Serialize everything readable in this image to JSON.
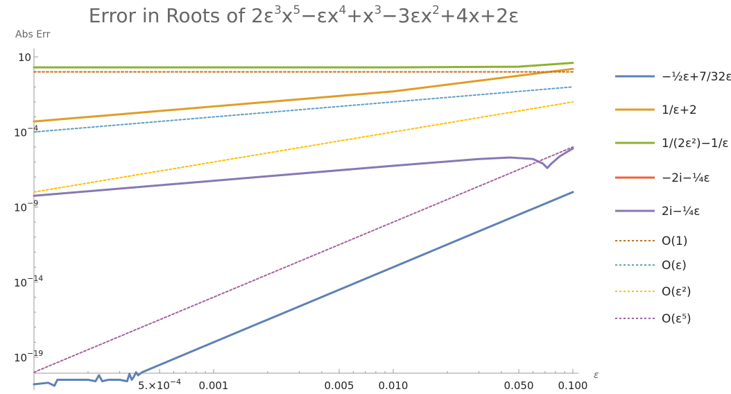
{
  "chart_data": {
    "type": "line",
    "title": "Error in Roots of 2ε³x⁵−εx⁴+x³−3εx²+4x+2ε",
    "title_parts": {
      "lead": "Error in Roots of ",
      "terms": [
        {
          "base": "2ε",
          "sup": "3"
        },
        {
          "base": "x",
          "sup": "5"
        },
        {
          "base": "−εx",
          "sup": "4"
        },
        {
          "base": "+x",
          "sup": "3"
        },
        {
          "base": "−3εx",
          "sup": "2"
        },
        {
          "base": "+4x+2ε",
          "sup": ""
        }
      ]
    },
    "ylabel": "Abs Err",
    "xlabel": "ε",
    "x_scale": "log",
    "y_scale": "log",
    "xlim": [
      0.0001,
      0.1
    ],
    "ylim_exp": [
      -21,
      10
    ],
    "x_ticks": [
      {
        "value": 0.0005,
        "label": "5.×10⁻⁴",
        "label_base": "5.×10",
        "label_sup": "−4"
      },
      {
        "value": 0.001,
        "label": "0.001"
      },
      {
        "value": 0.005,
        "label": "0.005"
      },
      {
        "value": 0.01,
        "label": "0.010"
      },
      {
        "value": 0.05,
        "label": "0.050"
      },
      {
        "value": 0.1,
        "label": "0.100"
      }
    ],
    "y_ticks": [
      {
        "exp": 1,
        "label": "10",
        "label_sup": ""
      },
      {
        "exp": -4,
        "label": "10",
        "label_sup": "−4"
      },
      {
        "exp": -9,
        "label": "10",
        "label_sup": "−9"
      },
      {
        "exp": -14,
        "label": "10",
        "label_sup": "−14"
      },
      {
        "exp": -19,
        "label": "10",
        "label_sup": "−19"
      }
    ],
    "series": [
      {
        "name": "−½ε+7/32ε³",
        "color": "#5e81b5",
        "dash": false,
        "points": [
          [
            0.0001,
            -20.8
          ],
          [
            0.00012,
            -20.7
          ],
          [
            0.00013,
            -20.9
          ],
          [
            0.000135,
            -20.5
          ],
          [
            0.00015,
            -20.5
          ],
          [
            0.000175,
            -20.5
          ],
          [
            0.0002,
            -20.5
          ],
          [
            0.00022,
            -20.6
          ],
          [
            0.00023,
            -20.2
          ],
          [
            0.00024,
            -20.6
          ],
          [
            0.00026,
            -20.5
          ],
          [
            0.0003,
            -20.5
          ],
          [
            0.00033,
            -20.6
          ],
          [
            0.00034,
            -20.1
          ],
          [
            0.00035,
            -20.5
          ],
          [
            0.00036,
            -20.3
          ],
          [
            0.00037,
            -20.0
          ],
          [
            0.00038,
            -20.2
          ],
          [
            0.0004,
            -20.0
          ],
          [
            0.001,
            -18.0
          ],
          [
            0.01,
            -13.0
          ],
          [
            0.1,
            -8.0
          ]
        ]
      },
      {
        "name": "1/ε+2",
        "color": "#e19c24",
        "dash": false,
        "points": [
          [
            0.0001,
            -3.3
          ],
          [
            0.001,
            -2.3
          ],
          [
            0.01,
            -1.3
          ],
          [
            0.1,
            0.2
          ]
        ]
      },
      {
        "name": "1/(2ε²)−1/ε",
        "color": "#8fb032",
        "dash": false,
        "points": [
          [
            0.0001,
            0.3
          ],
          [
            0.01,
            0.3
          ],
          [
            0.05,
            0.35
          ],
          [
            0.1,
            0.6
          ]
        ]
      },
      {
        "name": "−2i−¼ε",
        "color": "#eb6235",
        "dash": false,
        "points": []
      },
      {
        "name": "2i−¼ε",
        "color": "#8778b3",
        "dash": false,
        "points": [
          [
            0.0001,
            -8.25
          ],
          [
            0.001,
            -7.25
          ],
          [
            0.01,
            -6.25
          ],
          [
            0.03,
            -5.8
          ],
          [
            0.045,
            -5.7
          ],
          [
            0.06,
            -5.8
          ],
          [
            0.068,
            -6.1
          ],
          [
            0.072,
            -6.4
          ],
          [
            0.076,
            -6.1
          ],
          [
            0.085,
            -5.6
          ],
          [
            0.1,
            -5.1
          ]
        ]
      },
      {
        "name": "O(1)",
        "color": "#c56e1a",
        "dash": true,
        "points": [
          [
            0.0001,
            0.0
          ],
          [
            0.1,
            0.0
          ]
        ]
      },
      {
        "name": "O(ε)",
        "color": "#5d9ec7",
        "dash": true,
        "points": [
          [
            0.0001,
            -4.0
          ],
          [
            0.1,
            -1.0
          ]
        ]
      },
      {
        "name": "O(ε²)",
        "color": "#ffbf00",
        "dash": true,
        "points": [
          [
            0.0001,
            -8.0
          ],
          [
            0.1,
            -2.0
          ]
        ]
      },
      {
        "name": "O(ε⁵)",
        "color": "#a5609d",
        "dash": true,
        "points": [
          [
            0.0001,
            -20.0
          ],
          [
            0.1,
            -5.0
          ]
        ]
      }
    ]
  },
  "legend": [
    {
      "color": "#5e81b5",
      "dash": false,
      "label": "−½ε+7/32ε³"
    },
    {
      "color": "#e19c24",
      "dash": false,
      "label": "1/ε+2"
    },
    {
      "color": "#8fb032",
      "dash": false,
      "label": "1/(2ε²)−1/ε"
    },
    {
      "color": "#eb6235",
      "dash": false,
      "label": "−2i−¼ε"
    },
    {
      "color": "#8778b3",
      "dash": false,
      "label": "2i−¼ε"
    },
    {
      "color": "#c56e1a",
      "dash": true,
      "label": "O(1)"
    },
    {
      "color": "#5d9ec7",
      "dash": true,
      "label": "O(ε)"
    },
    {
      "color": "#ffbf00",
      "dash": true,
      "label": "O(ε²)"
    },
    {
      "color": "#a5609d",
      "dash": true,
      "label": "O(ε⁵)"
    }
  ]
}
